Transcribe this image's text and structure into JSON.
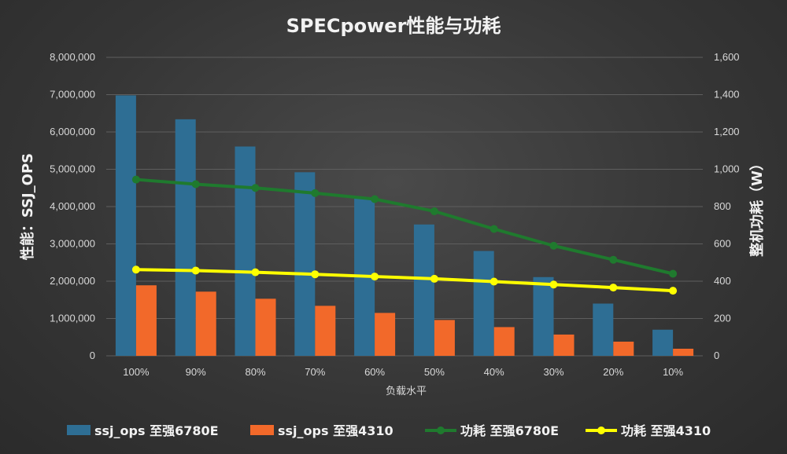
{
  "chart_data": {
    "type": "bar",
    "title": "SPECpower性能与功耗",
    "xlabel": "负载水平",
    "ylabel": "性能：SSJ_OPS",
    "y2label": "整机功耗（W）",
    "categories": [
      "100%",
      "90%",
      "80%",
      "70%",
      "60%",
      "50%",
      "40%",
      "30%",
      "20%",
      "10%"
    ],
    "ylim": [
      0,
      8000000
    ],
    "y2lim": [
      0,
      1600
    ],
    "yticks": [
      "0",
      "1,000,000",
      "2,000,000",
      "3,000,000",
      "4,000,000",
      "5,000,000",
      "6,000,000",
      "7,000,000",
      "8,000,000"
    ],
    "y2ticks": [
      "0",
      "200",
      "400",
      "600",
      "800",
      "1,000",
      "1,200",
      "1,400",
      "1,600"
    ],
    "grid": true,
    "legend_position": "bottom",
    "series": [
      {
        "name": "ssj_ops 至强6780E",
        "type": "bar",
        "axis": "left",
        "color": "#2e6e94",
        "values": [
          6980000,
          6340000,
          5610000,
          4920000,
          4230000,
          3520000,
          2810000,
          2110000,
          1400000,
          700000
        ]
      },
      {
        "name": "ssj_ops 至强4310",
        "type": "bar",
        "axis": "left",
        "color": "#f2692a",
        "values": [
          1890000,
          1720000,
          1530000,
          1340000,
          1150000,
          960000,
          770000,
          570000,
          380000,
          190000
        ]
      },
      {
        "name": "功耗 至强6780E",
        "type": "line",
        "axis": "right",
        "color": "#1f7a2e",
        "values": [
          945,
          920,
          900,
          872,
          840,
          775,
          680,
          590,
          515,
          440
        ]
      },
      {
        "name": "功耗 至强4310",
        "type": "line",
        "axis": "right",
        "color": "#ffff00",
        "values": [
          462,
          457,
          448,
          437,
          425,
          413,
          398,
          382,
          366,
          349
        ]
      }
    ]
  }
}
